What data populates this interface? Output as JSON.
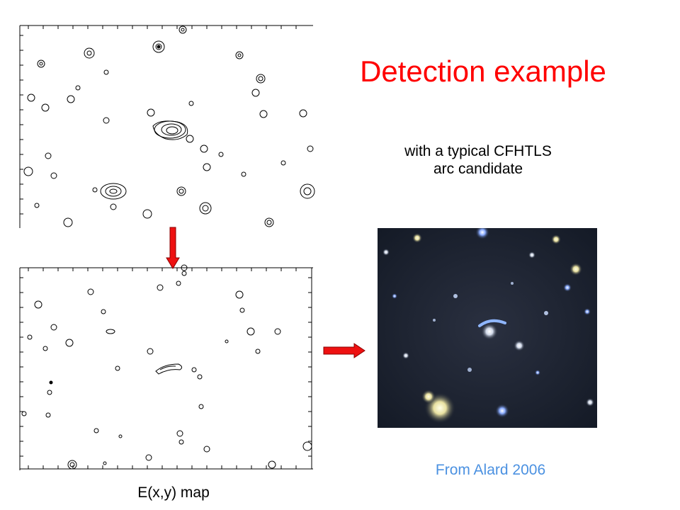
{
  "title": "Detection example",
  "subtitle_line1": "with a typical CFHTLS",
  "subtitle_line2": "arc candidate",
  "credit": "From Alard 2006",
  "map_caption": "E(x,y)  map",
  "colors": {
    "title": "#ff0000",
    "credit": "#4b91e1",
    "arrow_fill": "#ee1111",
    "arrow_stroke": "#8a0000",
    "contour": "#000000",
    "sky": "#1b2230"
  },
  "icons": {
    "down_arrow": "arrow-down-icon",
    "right_arrow": "arrow-right-icon"
  }
}
